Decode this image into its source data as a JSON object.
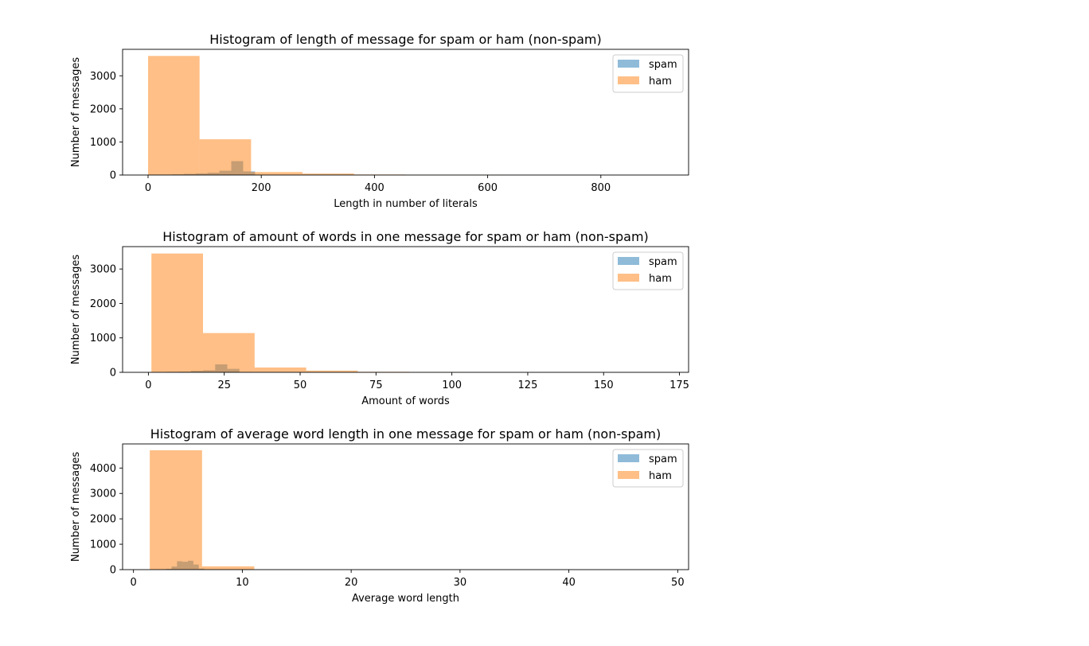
{
  "colors": {
    "spam": "#1f77b4",
    "ham": "#ff7f0e",
    "bar_opacity": 0.5
  },
  "chart_data": [
    {
      "type": "bar",
      "title": "Histogram of length of message for spam or ham (non-spam)",
      "xlabel": "Length in number of literals",
      "ylabel": "Number of messages",
      "xlim": [
        -45,
        955
      ],
      "ylim": [
        0,
        3800
      ],
      "xticks": [
        0,
        200,
        400,
        600,
        800
      ],
      "yticks": [
        0,
        1000,
        2000,
        3000
      ],
      "legend": "top-right",
      "series": [
        {
          "name": "spam",
          "bins": [
            [
              0,
              21
            ],
            [
              21,
              42
            ],
            [
              42,
              63
            ],
            [
              63,
              84
            ],
            [
              84,
              105
            ],
            [
              105,
              126
            ],
            [
              126,
              147
            ],
            [
              147,
              168
            ],
            [
              168,
              189
            ],
            [
              189,
              210
            ],
            [
              210,
              224
            ]
          ],
          "values": [
            5,
            10,
            20,
            35,
            50,
            70,
            130,
            420,
            110,
            10,
            3
          ]
        },
        {
          "name": "ham",
          "bins": [
            [
              0,
              91
            ],
            [
              91,
              182
            ],
            [
              182,
              273
            ],
            [
              273,
              364
            ],
            [
              364,
              455
            ],
            [
              455,
              546
            ],
            [
              546,
              637
            ],
            [
              637,
              728
            ],
            [
              728,
              819
            ],
            [
              819,
              910
            ]
          ],
          "values": [
            3600,
            1080,
            90,
            45,
            15,
            3,
            2,
            1,
            1,
            1
          ]
        }
      ]
    },
    {
      "type": "bar",
      "title": "Histogram of amount of words in one message for spam or ham (non-spam)",
      "xlabel": "Amount of words",
      "ylabel": "Number of messages",
      "xlim": [
        -8.5,
        178
      ],
      "ylim": [
        0,
        3650
      ],
      "xticks": [
        0,
        25,
        50,
        75,
        100,
        125,
        150,
        175
      ],
      "yticks": [
        0,
        1000,
        2000,
        3000
      ],
      "legend": "top-right",
      "series": [
        {
          "name": "spam",
          "bins": [
            [
              2,
              6
            ],
            [
              6,
              10
            ],
            [
              10,
              14
            ],
            [
              14,
              18
            ],
            [
              18,
              22
            ],
            [
              22,
              26
            ],
            [
              26,
              30
            ],
            [
              30,
              34
            ]
          ],
          "values": [
            5,
            15,
            20,
            45,
            60,
            230,
            100,
            10
          ]
        },
        {
          "name": "ham",
          "bins": [
            [
              1,
              18
            ],
            [
              18,
              35
            ],
            [
              35,
              52
            ],
            [
              52,
              69
            ],
            [
              69,
              86
            ],
            [
              86,
              103
            ],
            [
              103,
              120
            ],
            [
              120,
              137
            ],
            [
              137,
              154
            ],
            [
              154,
              171
            ]
          ],
          "values": [
            3450,
            1140,
            140,
            50,
            15,
            3,
            2,
            1,
            1,
            1
          ]
        }
      ]
    },
    {
      "type": "bar",
      "title": "Histogram of average word length in one message for spam or ham (non-spam)",
      "xlabel": "Average word length",
      "ylabel": "Number of messages",
      "xlim": [
        -1,
        51
      ],
      "ylim": [
        0,
        4950
      ],
      "xticks": [
        0,
        10,
        20,
        30,
        40,
        50
      ],
      "yticks": [
        0,
        1000,
        2000,
        3000,
        4000
      ],
      "legend": "top-right",
      "series": [
        {
          "name": "spam",
          "bins": [
            [
              2.5,
              3.0
            ],
            [
              3.0,
              3.5
            ],
            [
              3.5,
              4.0
            ],
            [
              4.0,
              4.5
            ],
            [
              4.5,
              5.0
            ],
            [
              5.0,
              5.5
            ],
            [
              5.5,
              6.0
            ],
            [
              6.0,
              6.5
            ],
            [
              6.5,
              7.0
            ],
            [
              7.0,
              7.5
            ]
          ],
          "values": [
            5,
            30,
            120,
            330,
            310,
            350,
            200,
            40,
            10,
            3
          ]
        },
        {
          "name": "ham",
          "bins": [
            [
              1.5,
              6.3
            ],
            [
              6.3,
              11.1
            ],
            [
              11.1,
              15.9
            ],
            [
              15.9,
              20.7
            ],
            [
              20.7,
              25.5
            ],
            [
              25.5,
              30.3
            ],
            [
              30.3,
              35.1
            ],
            [
              35.1,
              39.9
            ],
            [
              39.9,
              44.7
            ],
            [
              44.7,
              49.5
            ]
          ],
          "values": [
            4700,
            130,
            5,
            2,
            1,
            1,
            1,
            1,
            1,
            1
          ]
        }
      ]
    }
  ]
}
